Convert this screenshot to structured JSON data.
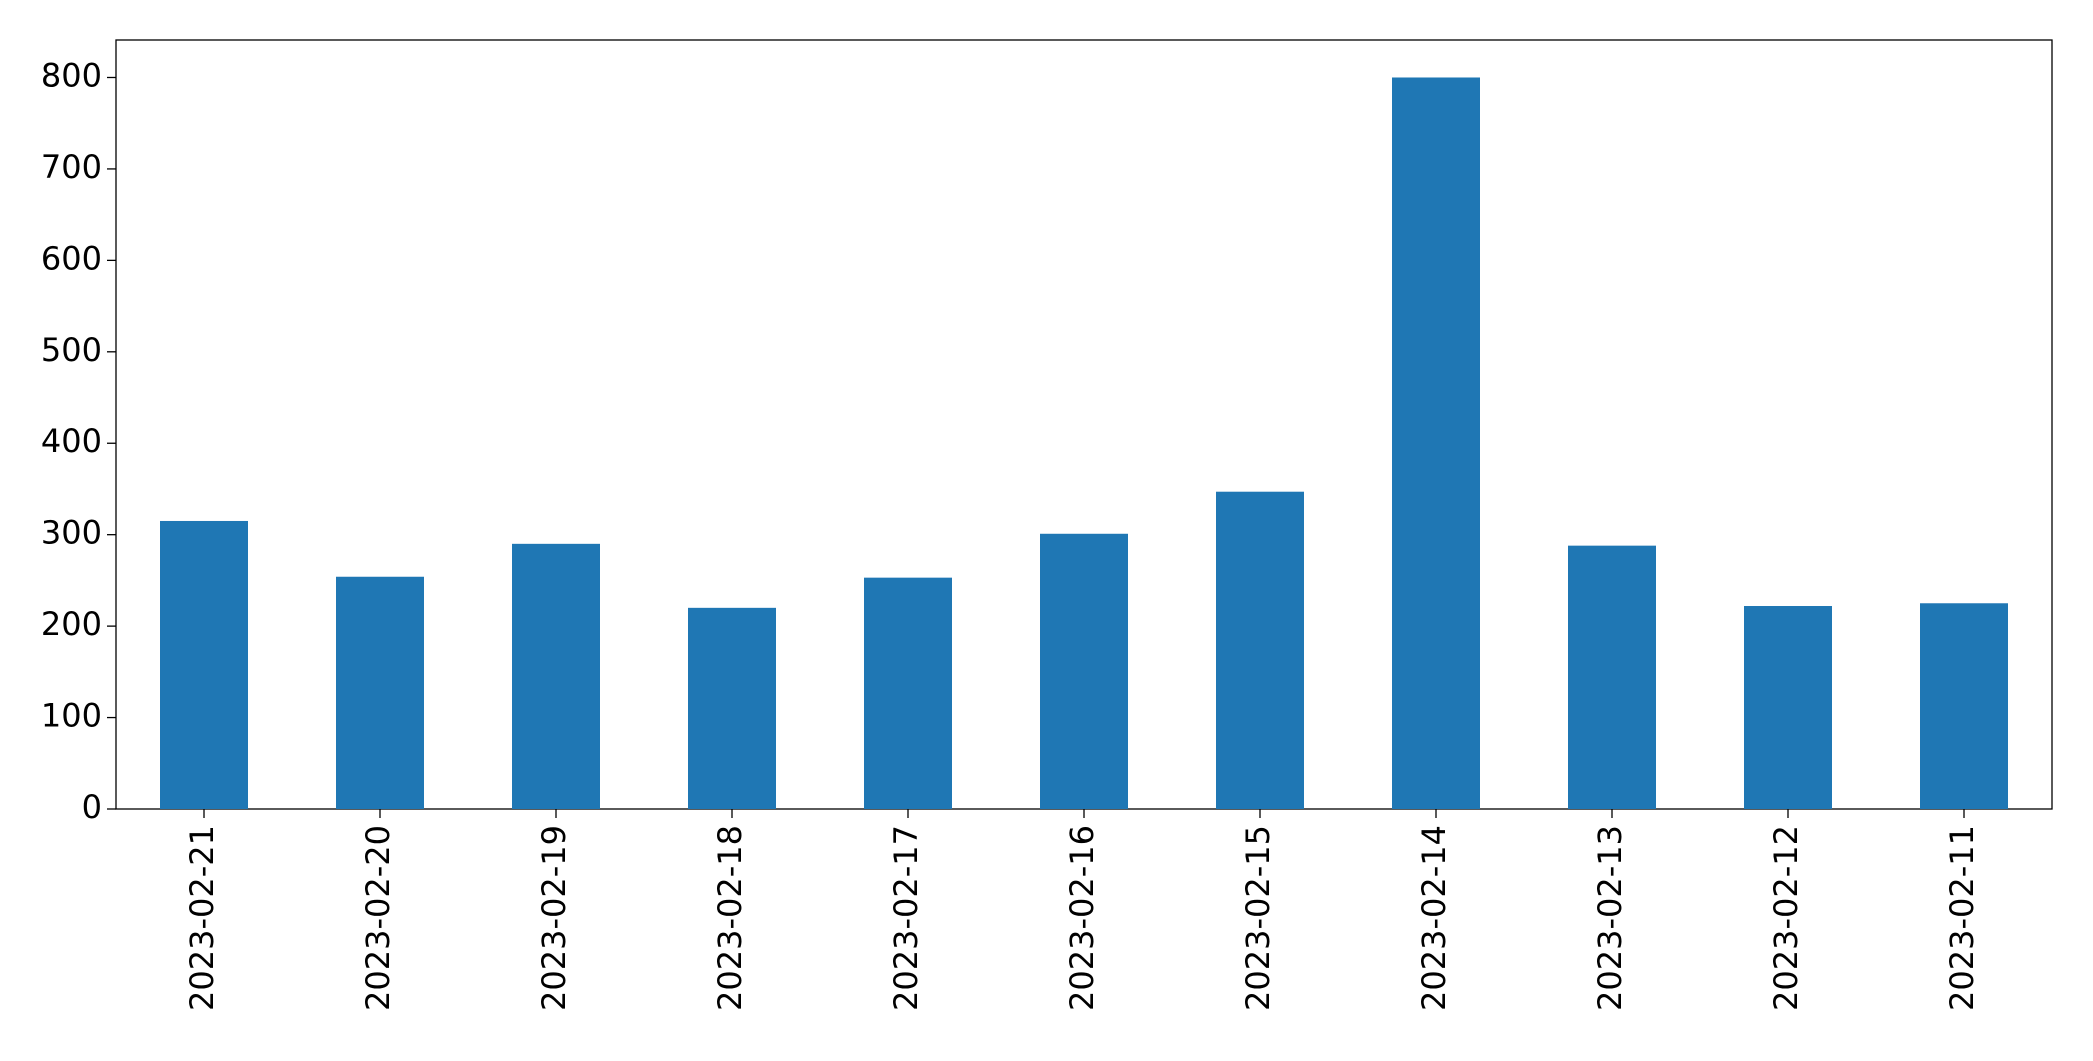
{
  "chart_data": {
    "type": "bar",
    "categories": [
      "2023-02-21",
      "2023-02-20",
      "2023-02-19",
      "2023-02-18",
      "2023-02-17",
      "2023-02-16",
      "2023-02-15",
      "2023-02-14",
      "2023-02-13",
      "2023-02-12",
      "2023-02-11"
    ],
    "values": [
      315,
      254,
      290,
      220,
      253,
      301,
      347,
      800,
      288,
      222,
      225
    ],
    "color": "#1f77b4",
    "ylim": [
      0,
      841
    ],
    "yticks": [
      0,
      100,
      200,
      300,
      400,
      500,
      600,
      700,
      800
    ],
    "grid": false
  }
}
